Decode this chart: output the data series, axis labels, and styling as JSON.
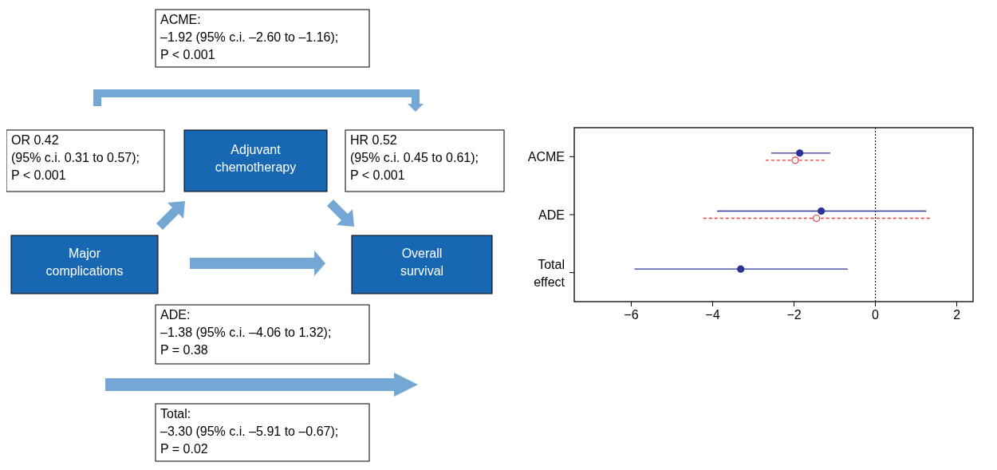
{
  "chart_data": [
    {
      "type": "other",
      "categories": [
        "Major complications",
        "Adjuvant chemotherapy",
        "Overall survival"
      ],
      "annotations": [
        "ACME:\n–1.92 (95% c.i. –2.60 to –1.16);\nP < 0.001",
        "OR 0.42\n(95% c.i. 0.31 to 0.57);\nP < 0.001",
        "HR 0.52\n(95% c.i. 0.45 to 0.61);\nP < 0.001",
        "ADE:\n–1.38 (95% c.i. –4.06 to 1.32);\nP = 0.38",
        "Total:\n–3.30 (95% c.i. –5.91 to –0.67);\nP = 0.02"
      ],
      "colors": [
        "#1767b3",
        "#1767b3",
        "#1767b3"
      ]
    },
    {
      "type": "scatter",
      "orientation": "horizontal",
      "categories": [
        "ACME",
        "ADE",
        "Total effect"
      ],
      "series": [
        {
          "color": "#2b3595",
          "values": [
            -1.86,
            -1.33,
            -3.31
          ],
          "errors": [
            [
              -2.56,
              -1.11
            ],
            [
              -3.89,
              1.25
            ],
            [
              -5.92,
              -0.68
            ]
          ],
          "line_style": "solid",
          "marker": "circle"
        },
        {
          "color": "#e8383d",
          "values": [
            -1.97,
            -1.45,
            null
          ],
          "errors": [
            [
              -2.7,
              -1.25
            ],
            [
              -4.23,
              1.39
            ],
            null
          ],
          "line_style": "dashed",
          "marker": "circle"
        }
      ],
      "xlim": [
        -7.4,
        2.4
      ],
      "xticks": [
        {
          "value": -6,
          "label": "−6"
        },
        {
          "value": -4,
          "label": "−4"
        },
        {
          "value": -2,
          "label": "−2"
        },
        0,
        2
      ],
      "ref_lines": [
        {
          "axis": "x",
          "value": 0,
          "color": "#000000",
          "line_style": "dotted"
        }
      ],
      "grid": false
    }
  ]
}
